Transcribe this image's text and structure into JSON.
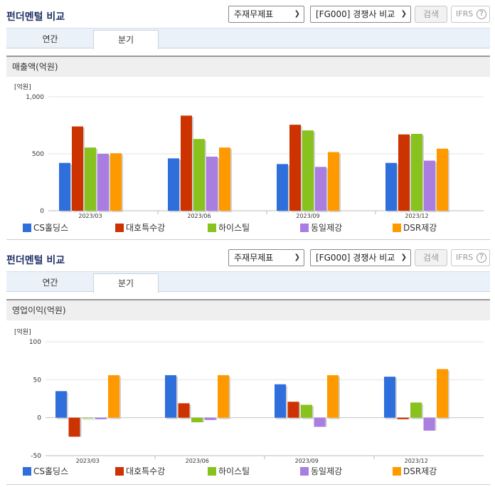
{
  "panels": [
    {
      "title": "펀더멘털 비교",
      "select_statement": "주재무제표",
      "select_compare": "[FG000] 경쟁사 비교",
      "search_label": "검색",
      "ifrs_label": "IFRS",
      "help_label": "?",
      "tabs": [
        {
          "label": "연간",
          "active": false
        },
        {
          "label": "분기",
          "active": true
        }
      ],
      "section_label": "매출액(억원)"
    },
    {
      "title": "펀더멘털 비교",
      "select_statement": "주재무제표",
      "select_compare": "[FG000] 경쟁사 비교",
      "search_label": "검색",
      "ifrs_label": "IFRS",
      "help_label": "?",
      "tabs": [
        {
          "label": "연간",
          "active": false
        },
        {
          "label": "분기",
          "active": true
        }
      ],
      "section_label": "영업이익(억원)"
    }
  ],
  "colors": {
    "CS홀딩스": "#2f6fdc",
    "대호특수강": "#cc3300",
    "하이스틸": "#88c21e",
    "동일제강": "#aa7de0",
    "DSR제강": "#ff9900"
  },
  "chart_data": [
    {
      "type": "bar",
      "unit_label": "[억원]",
      "categories": [
        "2023/03",
        "2023/06",
        "2023/09",
        "2023/12"
      ],
      "ylim": [
        0,
        1000
      ],
      "yticks": [
        0,
        500,
        1000
      ],
      "ytick_labels": [
        "0",
        "500",
        "1,000"
      ],
      "series": [
        {
          "name": "CS홀딩스",
          "values": [
            420,
            460,
            410,
            420
          ]
        },
        {
          "name": "대호특수강",
          "values": [
            740,
            835,
            755,
            670
          ]
        },
        {
          "name": "하이스틸",
          "values": [
            555,
            630,
            705,
            675
          ]
        },
        {
          "name": "동일제강",
          "values": [
            500,
            475,
            385,
            440
          ]
        },
        {
          "name": "DSR제강",
          "values": [
            505,
            555,
            515,
            545
          ]
        }
      ],
      "legend_position": "bottom"
    },
    {
      "type": "bar",
      "unit_label": "[억원]",
      "categories": [
        "2023/03",
        "2023/06",
        "2023/09",
        "2023/12"
      ],
      "ylim": [
        -50,
        100
      ],
      "yticks": [
        -50,
        0,
        50,
        100
      ],
      "ytick_labels": [
        "-50",
        "0",
        "50",
        "100"
      ],
      "series": [
        {
          "name": "CS홀딩스",
          "values": [
            35,
            56,
            44,
            54
          ]
        },
        {
          "name": "대호특수강",
          "values": [
            -25,
            19,
            21,
            -2
          ]
        },
        {
          "name": "하이스틸",
          "values": [
            0,
            -6,
            17,
            20
          ]
        },
        {
          "name": "동일제강",
          "values": [
            -2,
            -3,
            -12,
            -17
          ]
        },
        {
          "name": "DSR제강",
          "values": [
            56,
            56,
            56,
            64
          ]
        }
      ],
      "legend_position": "bottom"
    }
  ]
}
